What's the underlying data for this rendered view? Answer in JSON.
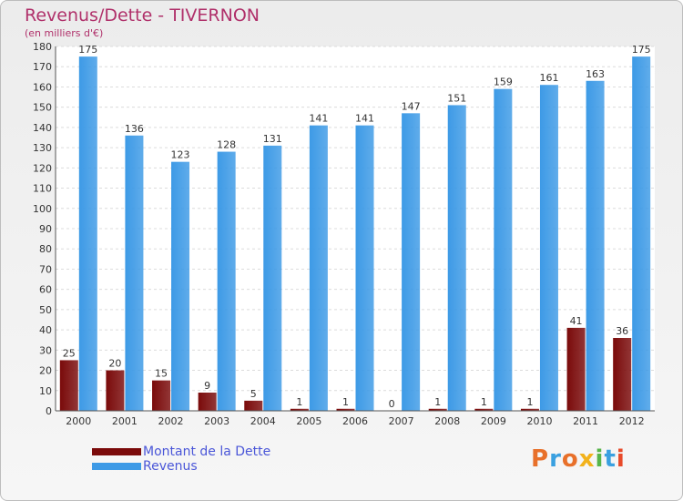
{
  "chart_data": {
    "type": "bar",
    "title": "Revenus/Dette - TIVERNON",
    "subtitle": "(en milliers d'€)",
    "categories": [
      "2000",
      "2001",
      "2002",
      "2003",
      "2004",
      "2005",
      "2006",
      "2007",
      "2008",
      "2009",
      "2010",
      "2011",
      "2012"
    ],
    "series": [
      {
        "name": "Montant de la Dette",
        "color": "#7a0a0a",
        "values": [
          25,
          20,
          15,
          9,
          5,
          1,
          1,
          0,
          1,
          1,
          1,
          41,
          36
        ]
      },
      {
        "name": "Revenus",
        "color": "#3d9ae6",
        "values": [
          175,
          136,
          123,
          128,
          131,
          141,
          141,
          147,
          151,
          159,
          161,
          163,
          175
        ]
      }
    ],
    "ylim": [
      0,
      180
    ],
    "ytick_step": 10,
    "grid": true,
    "legend_position": "bottom-left"
  },
  "logo": {
    "text": "Proxiti",
    "colors": [
      "#e8702a",
      "#3aa0e0",
      "#e8702a",
      "#f2b21b",
      "#56b54a",
      "#3aa0e0",
      "#e84a2a"
    ]
  }
}
